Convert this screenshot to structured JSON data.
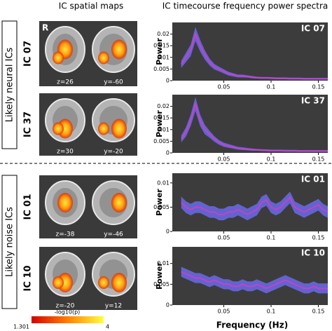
{
  "figure": {
    "left_header": "IC spatial maps",
    "right_header": "IC timecourse frequency power spectra",
    "groups": [
      "Likely neural ICs",
      "Likely noise ICs"
    ],
    "side_label": "R",
    "maps": [
      {
        "ic": "IC 07",
        "slices": [
          "z=26",
          "y=-60"
        ]
      },
      {
        "ic": "IC 37",
        "slices": [
          "z=30",
          "y=-20"
        ]
      },
      {
        "ic": "IC 01",
        "slices": [
          "z=-38",
          "y=-46"
        ]
      },
      {
        "ic": "IC 10",
        "slices": [
          "z=-20",
          "y=12"
        ]
      }
    ],
    "colorbar": {
      "label": "-log10(p)",
      "min": "1.301",
      "max": "4"
    }
  },
  "chart_data": [
    {
      "type": "line",
      "title": "IC 07",
      "ylabel": "Power",
      "x": [
        0.005,
        0.01,
        0.015,
        0.02,
        0.025,
        0.03,
        0.035,
        0.04,
        0.045,
        0.05,
        0.055,
        0.06,
        0.065,
        0.07,
        0.075,
        0.08,
        0.085,
        0.09,
        0.095,
        0.1,
        0.105,
        0.11,
        0.115,
        0.12,
        0.125,
        0.13,
        0.135,
        0.14,
        0.145,
        0.15,
        0.155,
        0.16
      ],
      "series": [
        {
          "color": "#d63cc8",
          "band_color": "#6a6ae8",
          "values": [
            0.007,
            0.01,
            0.013,
            0.02,
            0.015,
            0.011,
            0.008,
            0.006,
            0.005,
            0.004,
            0.003,
            0.0025,
            0.002,
            0.002,
            0.0018,
            0.0015,
            0.0013,
            0.0012,
            0.0012,
            0.0011,
            0.001,
            0.001,
            0.001,
            0.0009,
            0.0009,
            0.0009,
            0.0008,
            0.0008,
            0.0008,
            0.0008,
            0.0008,
            0.0008
          ],
          "errors": [
            0.0015,
            0.002,
            0.0025,
            0.003,
            0.0025,
            0.002,
            0.0015,
            0.0012,
            0.001,
            0.0009,
            0.0008,
            0.0007,
            0.0006,
            0.0006,
            0.0005,
            0.0005,
            0.0004,
            0.0004,
            0.0004,
            0.0004,
            0.0004,
            0.0004,
            0.0004,
            0.0004,
            0.0004,
            0.0004,
            0.0004,
            0.0004,
            0.0004,
            0.0004,
            0.0004,
            0.0004
          ]
        }
      ],
      "xlim": [
        0,
        0.16
      ],
      "ylim": [
        0,
        0.025
      ],
      "xticks": [
        0.05,
        0.1,
        0.15
      ],
      "yticks": [
        0,
        0.005,
        0.01,
        0.015,
        0.02
      ]
    },
    {
      "type": "line",
      "title": "IC 37",
      "ylabel": "Power",
      "x": [
        0.005,
        0.01,
        0.015,
        0.02,
        0.025,
        0.03,
        0.035,
        0.04,
        0.045,
        0.05,
        0.055,
        0.06,
        0.065,
        0.07,
        0.075,
        0.08,
        0.085,
        0.09,
        0.095,
        0.1,
        0.105,
        0.11,
        0.115,
        0.12,
        0.125,
        0.13,
        0.135,
        0.14,
        0.145,
        0.15,
        0.155,
        0.16
      ],
      "series": [
        {
          "color": "#d63cc8",
          "band_color": "#6a6ae8",
          "values": [
            0.006,
            0.009,
            0.014,
            0.021,
            0.014,
            0.01,
            0.008,
            0.006,
            0.0045,
            0.0035,
            0.003,
            0.0025,
            0.002,
            0.0018,
            0.0016,
            0.0014,
            0.0013,
            0.0012,
            0.0011,
            0.001,
            0.001,
            0.001,
            0.0009,
            0.0009,
            0.0009,
            0.0008,
            0.0008,
            0.0008,
            0.0008,
            0.0008,
            0.0008,
            0.0008
          ],
          "errors": [
            0.0015,
            0.002,
            0.0025,
            0.003,
            0.0025,
            0.002,
            0.0015,
            0.0012,
            0.001,
            0.0009,
            0.0008,
            0.0007,
            0.0006,
            0.0006,
            0.0005,
            0.0005,
            0.0004,
            0.0004,
            0.0004,
            0.0004,
            0.0004,
            0.0004,
            0.0004,
            0.0004,
            0.0004,
            0.0004,
            0.0004,
            0.0004,
            0.0004,
            0.0004,
            0.0004,
            0.0004
          ]
        }
      ],
      "xlim": [
        0,
        0.16
      ],
      "ylim": [
        0,
        0.025
      ],
      "xticks": [
        0.05,
        0.1,
        0.15
      ],
      "yticks": [
        0,
        0.005,
        0.01,
        0.015,
        0.02
      ]
    },
    {
      "type": "line",
      "title": "IC 01",
      "ylabel": "Power",
      "x": [
        0.005,
        0.01,
        0.015,
        0.02,
        0.025,
        0.03,
        0.035,
        0.04,
        0.045,
        0.05,
        0.055,
        0.06,
        0.065,
        0.07,
        0.075,
        0.08,
        0.085,
        0.09,
        0.095,
        0.1,
        0.105,
        0.11,
        0.115,
        0.12,
        0.125,
        0.13,
        0.135,
        0.14,
        0.145,
        0.15,
        0.155,
        0.16
      ],
      "series": [
        {
          "color": "#d63cc8",
          "band_color": "#6a6ae8",
          "values": [
            0.006,
            0.005,
            0.0045,
            0.005,
            0.005,
            0.0045,
            0.004,
            0.004,
            0.0035,
            0.0035,
            0.004,
            0.004,
            0.0045,
            0.004,
            0.0035,
            0.004,
            0.0045,
            0.006,
            0.0065,
            0.005,
            0.0045,
            0.005,
            0.006,
            0.007,
            0.005,
            0.0045,
            0.004,
            0.0045,
            0.005,
            0.0055,
            0.0045,
            0.004
          ],
          "errors": [
            0.0012,
            0.0012,
            0.0012,
            0.0012,
            0.0012,
            0.0012,
            0.0012,
            0.0012,
            0.0012,
            0.0012,
            0.0012,
            0.0012,
            0.0012,
            0.0012,
            0.0012,
            0.0012,
            0.0012,
            0.0012,
            0.0012,
            0.0012,
            0.0012,
            0.0012,
            0.0012,
            0.0012,
            0.0012,
            0.0012,
            0.0012,
            0.0012,
            0.0012,
            0.0012,
            0.0012,
            0.0012
          ]
        }
      ],
      "xlim": [
        0,
        0.16
      ],
      "ylim": [
        0,
        0.012
      ],
      "xticks": [
        0.05,
        0.1,
        0.15
      ],
      "yticks": [
        0,
        0.005,
        0.01
      ]
    },
    {
      "type": "line",
      "title": "IC 10",
      "ylabel": "Power",
      "xlabel": "Frequency (Hz)",
      "x": [
        0.005,
        0.01,
        0.015,
        0.02,
        0.025,
        0.03,
        0.035,
        0.04,
        0.045,
        0.05,
        0.055,
        0.06,
        0.065,
        0.07,
        0.075,
        0.08,
        0.085,
        0.09,
        0.095,
        0.1,
        0.105,
        0.11,
        0.115,
        0.12,
        0.125,
        0.13,
        0.135,
        0.14,
        0.145,
        0.15,
        0.155,
        0.16
      ],
      "series": [
        {
          "color": "#d63cc8",
          "band_color": "#6a6ae8",
          "values": [
            0.008,
            0.0075,
            0.007,
            0.0065,
            0.0065,
            0.006,
            0.0055,
            0.006,
            0.0055,
            0.005,
            0.005,
            0.0045,
            0.0045,
            0.005,
            0.0045,
            0.0045,
            0.005,
            0.0045,
            0.004,
            0.0045,
            0.005,
            0.0055,
            0.006,
            0.0055,
            0.005,
            0.0045,
            0.004,
            0.004,
            0.0045,
            0.004,
            0.004,
            0.004
          ],
          "errors": [
            0.0012,
            0.0012,
            0.0012,
            0.0012,
            0.0012,
            0.0012,
            0.0012,
            0.0012,
            0.0012,
            0.0012,
            0.0012,
            0.0012,
            0.0012,
            0.0012,
            0.0012,
            0.0012,
            0.0012,
            0.0012,
            0.0012,
            0.0012,
            0.0012,
            0.0012,
            0.0012,
            0.0012,
            0.0012,
            0.0012,
            0.0012,
            0.0012,
            0.0012,
            0.0012,
            0.0012,
            0.0012
          ]
        }
      ],
      "xlim": [
        0,
        0.16
      ],
      "ylim": [
        0,
        0.014
      ],
      "xticks": [
        0.05,
        0.1,
        0.15
      ],
      "yticks": [
        0,
        0.005,
        0.01
      ]
    }
  ]
}
